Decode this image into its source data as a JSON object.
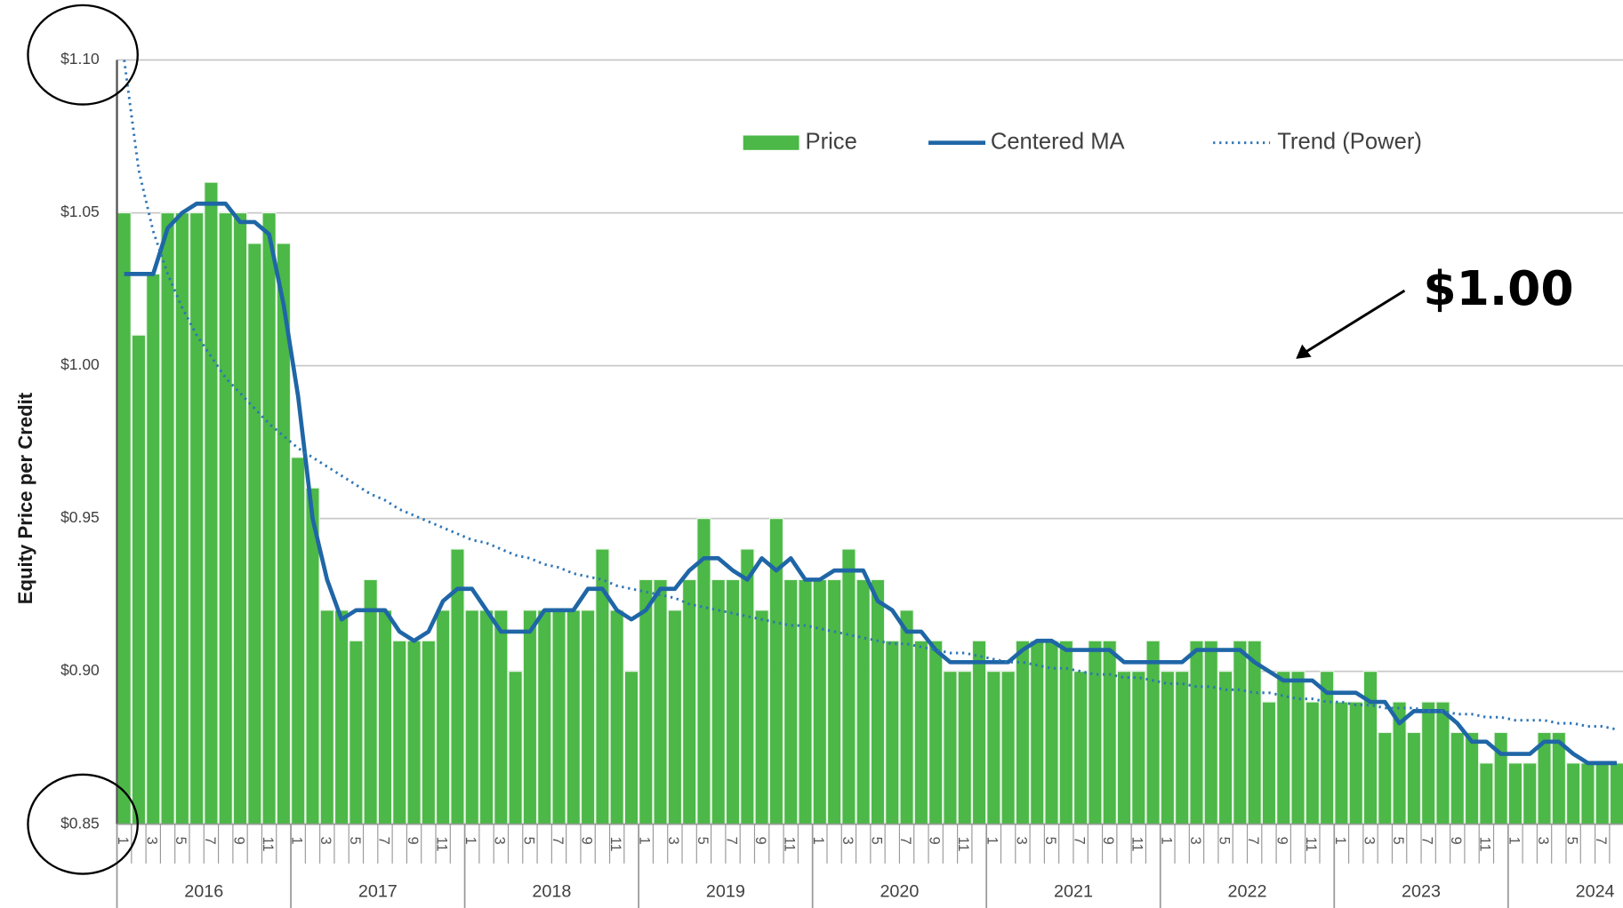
{
  "chart_data": {
    "type": "bar",
    "y_axis_title": "Equity Price per Credit",
    "annotation": "$1.00",
    "ylim": [
      0.85,
      1.1
    ],
    "yticks": [
      {
        "value": 0.85,
        "label": "$0.85"
      },
      {
        "value": 0.9,
        "label": "$0.90"
      },
      {
        "value": 0.95,
        "label": "$0.95"
      },
      {
        "value": 1.0,
        "label": "$1.00"
      },
      {
        "value": 1.05,
        "label": "$1.05"
      },
      {
        "value": 1.1,
        "label": "$1.10"
      }
    ],
    "grid": true,
    "legend": "top",
    "years": [
      "2016",
      "2017",
      "2018",
      "2019",
      "2020",
      "2021",
      "2022",
      "2023",
      "2024"
    ],
    "categories": [
      "1",
      null,
      "3",
      null,
      "5",
      null,
      "7",
      null,
      "9",
      null,
      "11",
      null,
      "1",
      null,
      "3",
      null,
      "5",
      null,
      "7",
      null,
      "9",
      null,
      "11",
      null,
      "1",
      null,
      "3",
      null,
      "5",
      null,
      "7",
      null,
      "9",
      null,
      "11",
      null,
      "1",
      null,
      "3",
      null,
      "5",
      null,
      "7",
      null,
      "9",
      null,
      "11",
      null,
      "1",
      null,
      "3",
      null,
      "5",
      null,
      "7",
      null,
      "9",
      null,
      "11",
      null,
      "1",
      null,
      "3",
      null,
      "5",
      null,
      "7",
      null,
      "9",
      null,
      "11",
      null,
      "1",
      null,
      "3",
      null,
      "5",
      null,
      "7",
      null,
      "9",
      null,
      "11",
      null,
      "1",
      null,
      "3",
      null,
      "5",
      null,
      "7",
      null,
      "9",
      null,
      "11",
      null,
      "1",
      null,
      "3",
      null,
      "5",
      null,
      "7",
      null
    ],
    "series": [
      {
        "name": "Price",
        "type": "bar",
        "color": "#4cb847",
        "values": [
          1.05,
          1.01,
          1.03,
          1.05,
          1.05,
          1.05,
          1.06,
          1.05,
          1.05,
          1.04,
          1.05,
          1.04,
          0.97,
          0.96,
          0.92,
          0.92,
          0.91,
          0.93,
          0.92,
          0.91,
          0.91,
          0.91,
          0.92,
          0.94,
          0.92,
          0.92,
          0.92,
          0.9,
          0.92,
          0.92,
          0.92,
          0.92,
          0.92,
          0.94,
          0.92,
          0.9,
          0.93,
          0.93,
          0.92,
          0.93,
          0.95,
          0.93,
          0.93,
          0.94,
          0.92,
          0.95,
          0.93,
          0.93,
          0.93,
          0.93,
          0.94,
          0.93,
          0.93,
          0.91,
          0.92,
          0.91,
          0.91,
          0.9,
          0.9,
          0.91,
          0.9,
          0.9,
          0.91,
          0.91,
          0.91,
          0.91,
          0.9,
          0.91,
          0.91,
          0.9,
          0.9,
          0.91,
          0.9,
          0.9,
          0.91,
          0.91,
          0.9,
          0.91,
          0.91,
          0.89,
          0.9,
          0.9,
          0.89,
          0.9,
          0.89,
          0.89,
          0.9,
          0.88,
          0.89,
          0.88,
          0.89,
          0.89,
          0.88,
          0.88,
          0.87,
          0.88,
          0.87,
          0.87,
          0.88,
          0.88,
          0.87,
          0.87,
          0.87,
          0.87
        ]
      },
      {
        "name": "Centered MA",
        "type": "line",
        "style": "solid",
        "color": "#1f66a6",
        "values": [
          1.03,
          1.03,
          1.03,
          1.045,
          1.05,
          1.053,
          1.053,
          1.053,
          1.047,
          1.047,
          1.043,
          1.02,
          0.99,
          0.95,
          0.93,
          0.917,
          0.92,
          0.92,
          0.92,
          0.913,
          0.91,
          0.913,
          0.923,
          0.927,
          0.927,
          0.92,
          0.913,
          0.913,
          0.913,
          0.92,
          0.92,
          0.92,
          0.927,
          0.927,
          0.92,
          0.917,
          0.92,
          0.927,
          0.927,
          0.933,
          0.937,
          0.937,
          0.933,
          0.93,
          0.937,
          0.933,
          0.937,
          0.93,
          0.93,
          0.933,
          0.933,
          0.933,
          0.923,
          0.92,
          0.913,
          0.913,
          0.907,
          0.903,
          0.903,
          0.903,
          0.903,
          0.903,
          0.907,
          0.91,
          0.91,
          0.907,
          0.907,
          0.907,
          0.907,
          0.903,
          0.903,
          0.903,
          0.903,
          0.903,
          0.907,
          0.907,
          0.907,
          0.907,
          0.903,
          0.9,
          0.897,
          0.897,
          0.897,
          0.893,
          0.893,
          0.893,
          0.89,
          0.89,
          0.883,
          0.887,
          0.887,
          0.887,
          0.883,
          0.877,
          0.877,
          0.873,
          0.873,
          0.873,
          0.877,
          0.877,
          0.873,
          0.87,
          0.87,
          0.87
        ]
      },
      {
        "name": "Trend (Power)",
        "type": "line",
        "style": "dotted",
        "color": "#2e75b6",
        "values": [
          1.1,
          1.064,
          1.044,
          1.03,
          1.019,
          1.01,
          1.003,
          0.996,
          0.991,
          0.986,
          0.981,
          0.977,
          0.973,
          0.97,
          0.967,
          0.964,
          0.961,
          0.958,
          0.956,
          0.953,
          0.951,
          0.949,
          0.947,
          0.945,
          0.943,
          0.942,
          0.94,
          0.938,
          0.937,
          0.935,
          0.934,
          0.932,
          0.931,
          0.93,
          0.928,
          0.927,
          0.926,
          0.925,
          0.924,
          0.922,
          0.921,
          0.92,
          0.919,
          0.918,
          0.917,
          0.916,
          0.915,
          0.915,
          0.914,
          0.913,
          0.912,
          0.911,
          0.91,
          0.909,
          0.909,
          0.908,
          0.907,
          0.906,
          0.906,
          0.905,
          0.904,
          0.903,
          0.903,
          0.902,
          0.901,
          0.901,
          0.9,
          0.899,
          0.899,
          0.898,
          0.898,
          0.897,
          0.896,
          0.896,
          0.895,
          0.895,
          0.894,
          0.894,
          0.893,
          0.893,
          0.892,
          0.891,
          0.891,
          0.89,
          0.89,
          0.889,
          0.889,
          0.888,
          0.888,
          0.888,
          0.887,
          0.887,
          0.886,
          0.886,
          0.885,
          0.885,
          0.884,
          0.884,
          0.884,
          0.883,
          0.883,
          0.882,
          0.882,
          0.881
        ]
      }
    ]
  }
}
